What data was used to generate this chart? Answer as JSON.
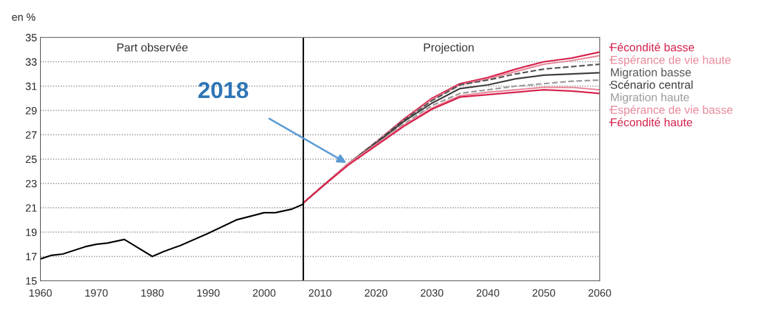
{
  "chart_data": {
    "type": "line",
    "ylabel": "en %",
    "xlim": [
      1960,
      2060
    ],
    "xticks": [
      1960,
      1970,
      1980,
      1990,
      2000,
      2010,
      2020,
      2030,
      2040,
      2050,
      2060
    ],
    "ylim": [
      15,
      35
    ],
    "yticks": [
      15,
      17,
      19,
      21,
      23,
      25,
      27,
      29,
      31,
      33,
      35
    ],
    "grid": "y",
    "legend": "right",
    "line_style": "solid",
    "marker": "none",
    "ref_lines": [
      {
        "axis": "x",
        "value": 2007,
        "color": "#000000",
        "line_style": "solid"
      }
    ],
    "annotations": [
      "Part observée",
      "Projection",
      {
        "text": "2018",
        "x": 2015,
        "y": 24.6
      }
    ],
    "series": [
      {
        "color": "#000000",
        "x": [
          1960,
          1962,
          1964,
          1966,
          1968,
          1970,
          1972,
          1974,
          1975,
          1980,
          1982,
          1985,
          1990,
          1995,
          2000,
          2002,
          2005,
          2007
        ],
        "values": [
          16.8,
          17.1,
          17.2,
          17.5,
          17.8,
          18.0,
          18.1,
          18.3,
          18.4,
          17.0,
          17.4,
          17.9,
          18.9,
          20.0,
          20.6,
          20.6,
          20.9,
          21.3
        ]
      },
      {
        "name": "Fécondité basse",
        "color": "#d6204a",
        "x": [
          2007,
          2010,
          2015,
          2020,
          2025,
          2030,
          2035,
          2040,
          2045,
          2050,
          2055,
          2060
        ],
        "values": [
          21.4,
          22.6,
          24.6,
          26.4,
          28.3,
          30.0,
          31.2,
          31.7,
          32.4,
          33.0,
          33.3,
          33.8
        ]
      },
      {
        "name": "Espérance de vie haute",
        "color": "#e8899a",
        "x": [
          2007,
          2010,
          2015,
          2020,
          2025,
          2030,
          2035,
          2040,
          2045,
          2050,
          2055,
          2060
        ],
        "values": [
          21.4,
          22.6,
          24.6,
          26.4,
          28.2,
          29.9,
          31.1,
          31.6,
          32.2,
          32.8,
          33.1,
          33.5
        ]
      },
      {
        "name": "Migration basse",
        "color": "#555555",
        "line_style": "dashed",
        "x": [
          2007,
          2010,
          2015,
          2020,
          2025,
          2030,
          2035,
          2040,
          2045,
          2050,
          2055,
          2060
        ],
        "values": [
          21.4,
          22.6,
          24.6,
          26.4,
          28.2,
          29.8,
          31.1,
          31.5,
          32.0,
          32.4,
          32.6,
          32.8
        ]
      },
      {
        "name": "Scénario central",
        "color": "#3c3c3c",
        "x": [
          2007,
          2010,
          2015,
          2020,
          2025,
          2030,
          2035,
          2040,
          2045,
          2050,
          2055,
          2060
        ],
        "values": [
          21.4,
          22.6,
          24.6,
          26.3,
          28.1,
          29.6,
          30.8,
          31.1,
          31.6,
          31.9,
          32.0,
          32.1
        ]
      },
      {
        "name": "Migration haute",
        "color": "#999999",
        "line_style": "dashed",
        "x": [
          2007,
          2010,
          2015,
          2020,
          2025,
          2030,
          2035,
          2040,
          2045,
          2050,
          2055,
          2060
        ],
        "values": [
          21.4,
          22.6,
          24.6,
          26.2,
          27.9,
          29.4,
          30.4,
          30.7,
          31.0,
          31.2,
          31.4,
          31.5
        ]
      },
      {
        "name": "Espérance de vie basse",
        "color": "#e8899a",
        "x": [
          2007,
          2010,
          2015,
          2020,
          2025,
          2030,
          2035,
          2040,
          2045,
          2050,
          2055,
          2060
        ],
        "values": [
          21.4,
          22.6,
          24.6,
          26.2,
          27.8,
          29.2,
          30.2,
          30.5,
          30.7,
          30.9,
          30.9,
          30.7
        ]
      },
      {
        "name": "Fécondité haute",
        "color": "#d6204a",
        "x": [
          2007,
          2010,
          2015,
          2020,
          2025,
          2030,
          2035,
          2040,
          2045,
          2050,
          2055,
          2060
        ],
        "values": [
          21.4,
          22.6,
          24.5,
          26.1,
          27.7,
          29.1,
          30.1,
          30.3,
          30.5,
          30.7,
          30.6,
          30.4
        ]
      }
    ]
  }
}
